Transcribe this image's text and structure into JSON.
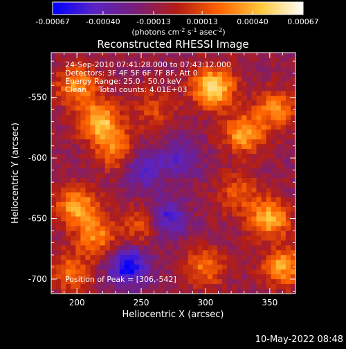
{
  "chart_data": {
    "type": "heatmap",
    "title": "Reconstructed RHESSI Image",
    "xlabel": "Heliocentric X (arcsec)",
    "ylabel": "Heliocentric Y (arcsec)",
    "xlim": [
      180,
      370
    ],
    "ylim": [
      -712,
      -513
    ],
    "xticks": [
      "200",
      "250",
      "300",
      "350"
    ],
    "yticks": [
      "-550",
      "-600",
      "-650",
      "-700"
    ],
    "colorbar": {
      "range": [
        -0.00067,
        0.00067
      ],
      "ticks": [
        "-0.00067",
        "-0.00040",
        "-0.00013",
        "0.00013",
        "0.00040",
        "0.00067"
      ],
      "label_prefix": "(photons cm",
      "label_exp1": "-2",
      "label_mid": " s",
      "label_exp2": "-1",
      "label_mid2": " asec",
      "label_exp3": "-2",
      "label_suffix": ")",
      "colors": [
        "#0000ff",
        "#5a24c4",
        "#781e78",
        "#b41e14",
        "#ff6400",
        "#ffc83c",
        "#ffffff"
      ]
    },
    "annotations": [
      "24-Sep-2010 07:41:28.000 to 07:43:12.000",
      "Detectors: 3F 4F 5F 6F 7F 8F, Att 0",
      "Energy Range: 25.0 - 50.0 keV",
      "Clean     Total counts: 4.01E+03"
    ],
    "peak_label": "Position of Peak = [306,-542]",
    "peak": [
      306,
      -542
    ],
    "blobs": [
      {
        "x": 306,
        "y": -542,
        "amp": 0.00067
      },
      {
        "x": 218,
        "y": -570,
        "amp": 0.00058
      },
      {
        "x": 200,
        "y": -540,
        "amp": 0.00045
      },
      {
        "x": 330,
        "y": -580,
        "amp": 0.0005
      },
      {
        "x": 355,
        "y": -560,
        "amp": 0.0004
      },
      {
        "x": 230,
        "y": -595,
        "amp": 0.00038
      },
      {
        "x": 200,
        "y": -640,
        "amp": 0.0005
      },
      {
        "x": 215,
        "y": -665,
        "amp": 0.0004
      },
      {
        "x": 195,
        "y": -695,
        "amp": 0.00035
      },
      {
        "x": 250,
        "y": -655,
        "amp": 0.0003
      },
      {
        "x": 350,
        "y": -650,
        "amp": 0.00052
      },
      {
        "x": 360,
        "y": -690,
        "amp": 0.00048
      },
      {
        "x": 300,
        "y": -690,
        "amp": 0.00035
      },
      {
        "x": 325,
        "y": -630,
        "amp": 0.0003
      },
      {
        "x": 260,
        "y": -560,
        "amp": 0.00025
      },
      {
        "x": 280,
        "y": -600,
        "amp": -0.0003
      },
      {
        "x": 240,
        "y": -690,
        "amp": -0.00055
      },
      {
        "x": 270,
        "y": -650,
        "amp": -0.0004
      },
      {
        "x": 250,
        "y": -610,
        "amp": -0.00035
      }
    ]
  },
  "footer": {
    "datetime": "10-May-2022 08:48"
  }
}
